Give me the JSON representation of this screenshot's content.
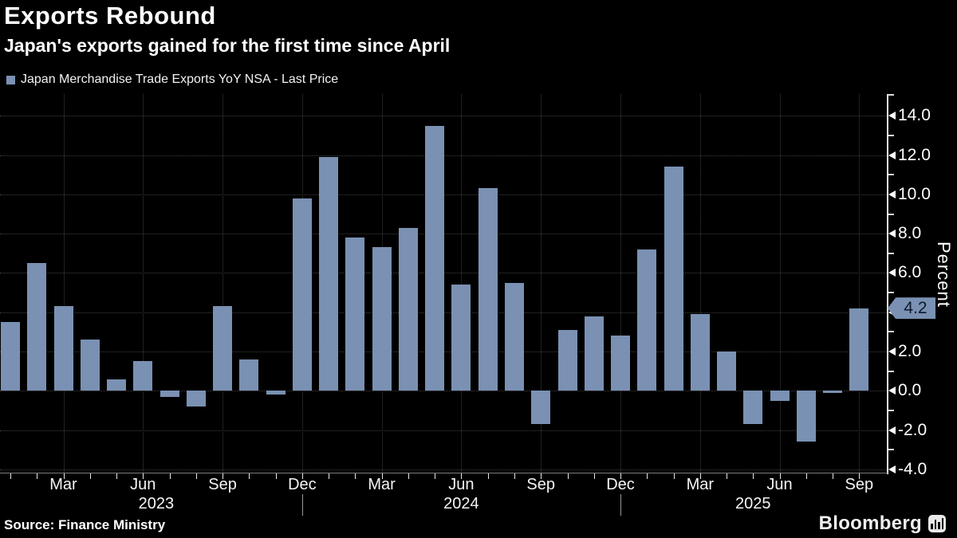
{
  "header": {
    "title": "Exports Rebound",
    "subtitle": "Japan's exports gained for the first time since April"
  },
  "legend": {
    "label": "Japan Merchandise Trade Exports YoY NSA - Last Price",
    "swatch_color": "#7a91b3"
  },
  "footer": {
    "source": "Source: Finance Ministry",
    "brand": "Bloomberg"
  },
  "chart_data": {
    "type": "bar",
    "title": "Exports Rebound",
    "subtitle": "Japan's exports gained for the first time since April",
    "legend": "Japan Merchandise Trade Exports YoY NSA - Last Price",
    "ylabel": "Percent",
    "ylim": [
      -4.0,
      14.0
    ],
    "ytick_step": 2.0,
    "grid": "dotted",
    "legend_position": "top-left",
    "bar_color": "#7a91b3",
    "background_color": "#000000",
    "last_price": {
      "value": 4.2,
      "label": "4.2"
    },
    "months": [
      "2023-01",
      "2023-02",
      "2023-03",
      "2023-04",
      "2023-05",
      "2023-06",
      "2023-07",
      "2023-08",
      "2023-09",
      "2023-10",
      "2023-11",
      "2023-12",
      "2024-01",
      "2024-02",
      "2024-03",
      "2024-04",
      "2024-05",
      "2024-06",
      "2024-07",
      "2024-08",
      "2024-09",
      "2024-10",
      "2024-11",
      "2024-12",
      "2025-01",
      "2025-02",
      "2025-03",
      "2025-04",
      "2025-05",
      "2025-06",
      "2025-07",
      "2025-08",
      "2025-09"
    ],
    "values": [
      3.5,
      6.5,
      4.3,
      2.6,
      0.6,
      1.5,
      -0.3,
      -0.8,
      4.3,
      1.6,
      -0.2,
      9.8,
      11.9,
      7.8,
      7.3,
      8.3,
      13.5,
      5.4,
      10.3,
      5.5,
      -1.7,
      3.1,
      3.8,
      2.8,
      7.2,
      11.4,
      3.9,
      2.0,
      -1.7,
      -0.5,
      -2.6,
      -0.1,
      4.2
    ],
    "xticks": [
      {
        "pos": 2,
        "label": "Mar"
      },
      {
        "pos": 5,
        "label": "Jun"
      },
      {
        "pos": 8,
        "label": "Sep"
      },
      {
        "pos": 11,
        "label": "Dec"
      },
      {
        "pos": 14,
        "label": "Mar"
      },
      {
        "pos": 17,
        "label": "Jun"
      },
      {
        "pos": 20,
        "label": "Sep"
      },
      {
        "pos": 23,
        "label": "Dec"
      },
      {
        "pos": 26,
        "label": "Mar"
      },
      {
        "pos": 29,
        "label": "Jun"
      },
      {
        "pos": 32,
        "label": "Sep"
      }
    ],
    "year_ticks": [
      {
        "pos": 5.5,
        "label": "2023"
      },
      {
        "pos": 17,
        "label": "2024"
      },
      {
        "pos": 28,
        "label": "2025"
      }
    ],
    "year_divider_positions": [
      11,
      23
    ]
  }
}
